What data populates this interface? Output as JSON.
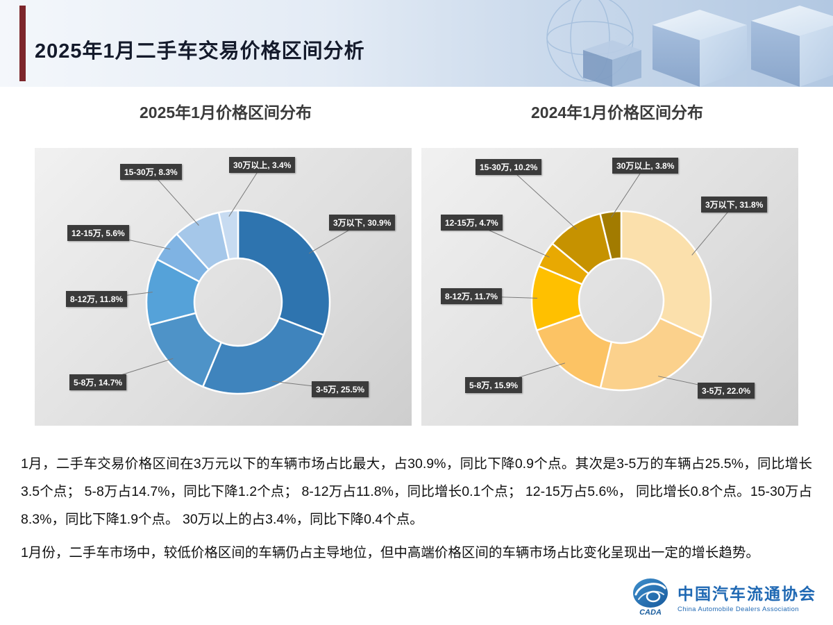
{
  "header": {
    "title": "2025年1月二手车交易价格区间分析"
  },
  "chart_data": [
    {
      "type": "pie",
      "subtype": "donut",
      "title": "2025年1月价格区间分布",
      "unit": "%",
      "legend_position": "none",
      "start_angle": 0,
      "direction": "clockwise",
      "categories": [
        "3万以下",
        "3-5万",
        "5-8万",
        "8-12万",
        "12-15万",
        "15-30万",
        "30万以上"
      ],
      "values": [
        30.9,
        25.5,
        14.7,
        11.8,
        5.6,
        8.3,
        3.4
      ],
      "labels": [
        "3万以下, 30.9%",
        "3-5万, 25.5%",
        "5-8万, 14.7%",
        "8-12万, 11.8%",
        "12-15万, 5.6%",
        "15-30万, 8.3%",
        "30万以上, 3.4%"
      ],
      "colors": [
        "#2e74af",
        "#3f84bd",
        "#4e93c8",
        "#55a2d9",
        "#7fb3e3",
        "#a5c7e9",
        "#c7dbf1"
      ]
    },
    {
      "type": "pie",
      "subtype": "donut",
      "title": "2024年1月价格区间分布",
      "unit": "%",
      "legend_position": "none",
      "start_angle": 0,
      "direction": "clockwise",
      "categories": [
        "3万以下",
        "3-5万",
        "5-8万",
        "8-12万",
        "12-15万",
        "15-30万",
        "30万以上"
      ],
      "values": [
        31.8,
        22.0,
        15.9,
        11.7,
        4.7,
        10.2,
        3.8
      ],
      "labels": [
        "3万以下, 31.8%",
        "3-5万, 22.0%",
        "5-8万, 15.9%",
        "8-12万, 11.7%",
        "12-15万, 4.7%",
        "15-30万, 10.2%",
        "30万以上, 3.8%"
      ],
      "colors": [
        "#fbe0ac",
        "#fbd18c",
        "#fcc364",
        "#ffc000",
        "#e8a902",
        "#c69200",
        "#a27b00"
      ]
    }
  ],
  "paragraphs": [
    "1月，二手车交易价格区间在3万元以下的车辆市场占比最大，占30.9%，同比下降0.9个点。其次是3-5万的车辆占25.5%，同比增长3.5个点； 5-8万占14.7%，同比下降1.2个点； 8-12万占11.8%，同比增长0.1个点； 12-15万占5.6%， 同比增长0.8个点。15-30万占8.3%，同比下降1.9个点。 30万以上的占3.4%，同比下降0.4个点。",
    "1月份，二手车市场中，较低价格区间的车辆仍占主导地位，但中高端价格区间的车辆市场占比变化呈现出一定的增长趋势。"
  ],
  "footer": {
    "org_cn": "中国汽车流通协会",
    "org_en": "China Automobile Dealers Association",
    "logo_acronym": "CADA"
  }
}
